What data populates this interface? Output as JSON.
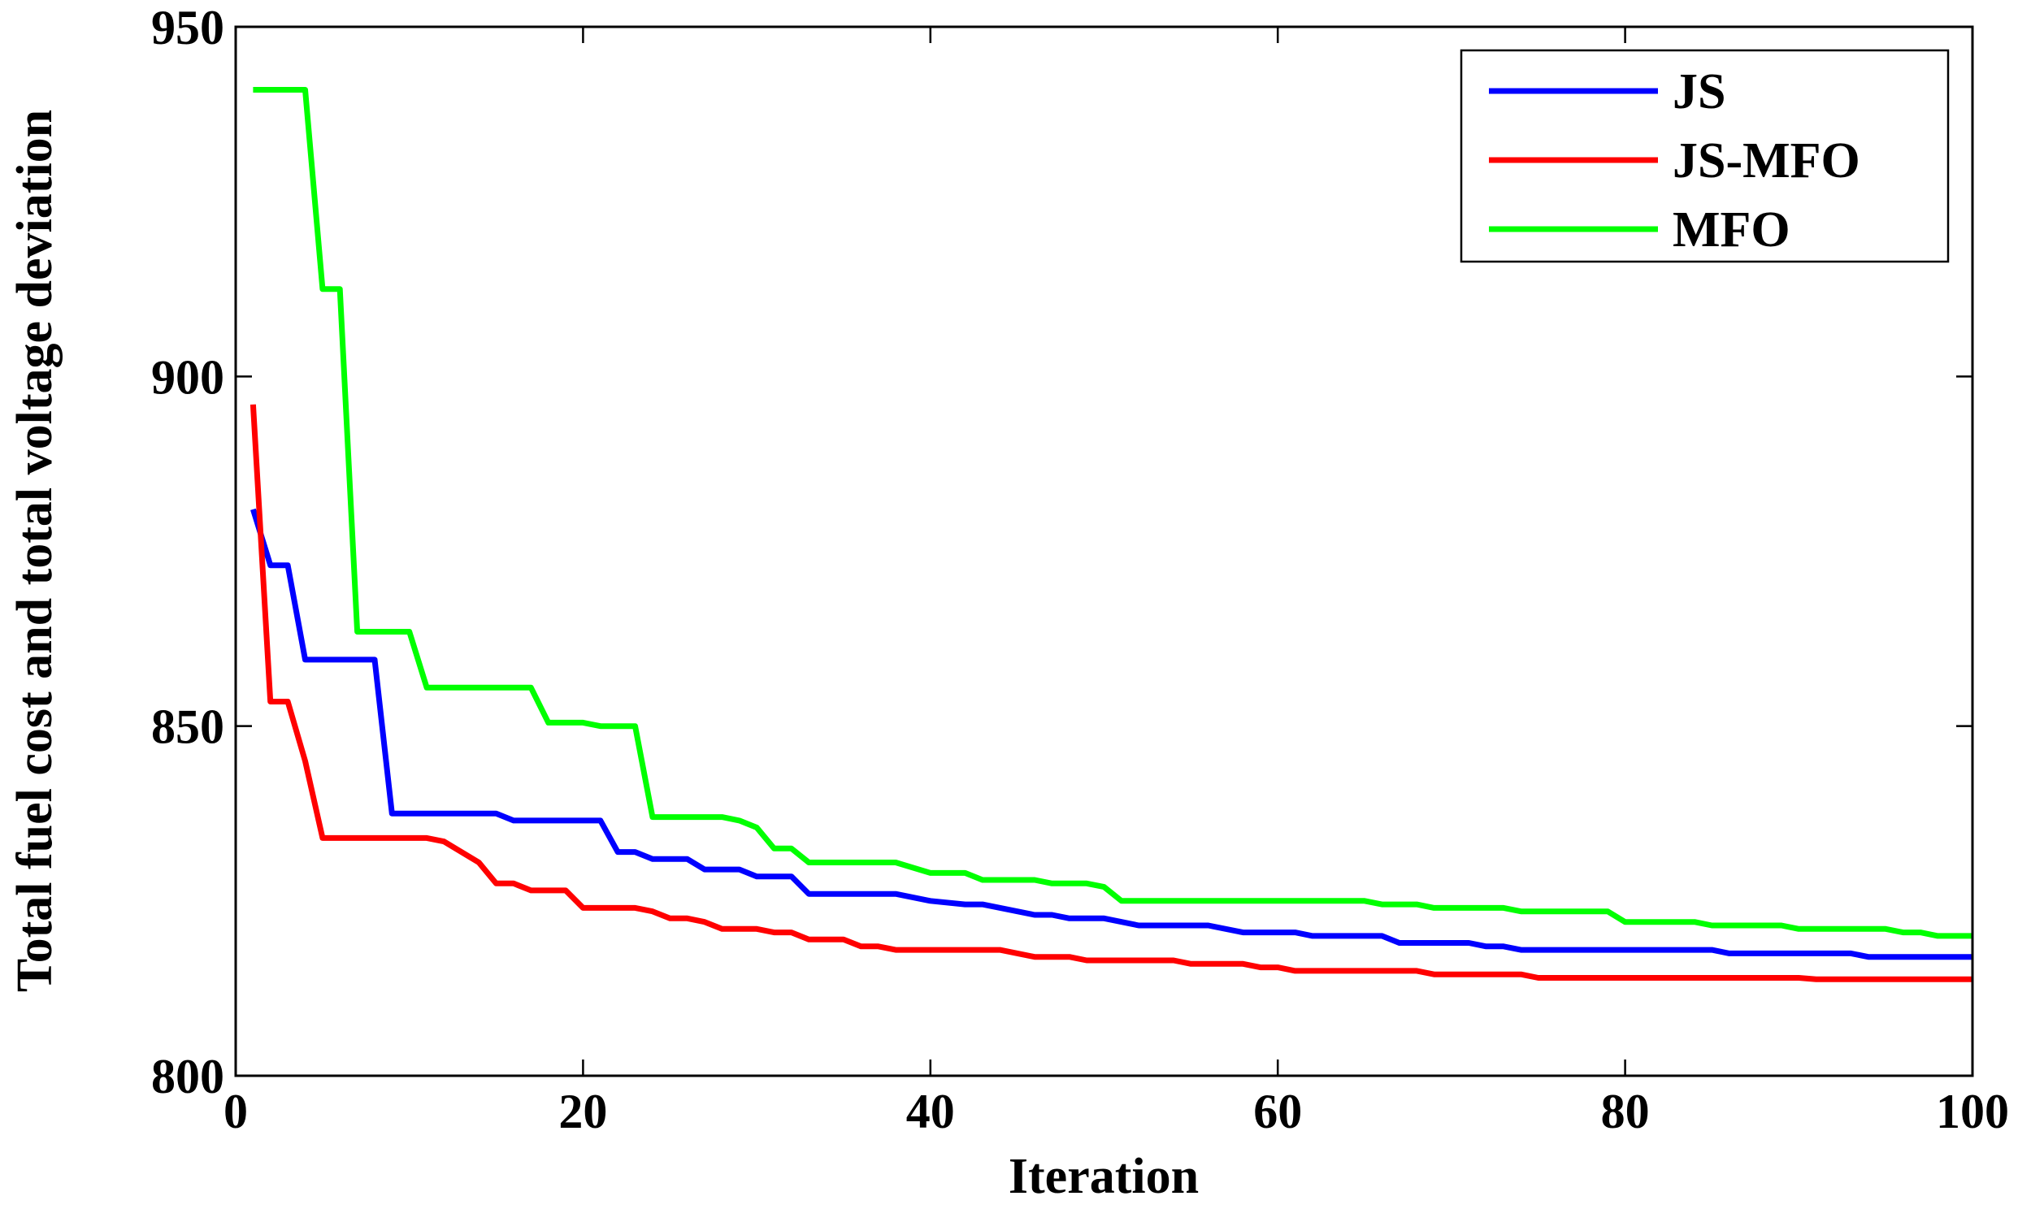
{
  "chart_data": {
    "type": "line",
    "title": "",
    "xlabel": "Iteration",
    "ylabel": "Total fuel cost and total voltage deviation",
    "xlim": [
      0,
      100
    ],
    "ylim": [
      800,
      950
    ],
    "xticks": [
      0,
      20,
      40,
      60,
      80,
      100
    ],
    "xtick_labels": [
      "0",
      "20",
      "40",
      "60",
      "80",
      "100"
    ],
    "yticks": [
      800,
      850,
      900,
      950
    ],
    "ytick_labels": [
      "800",
      "850",
      "900",
      "950"
    ],
    "grid": false,
    "legend_position": "top-right",
    "series": [
      {
        "name": "JS",
        "color": "#0000ff",
        "points": [
          [
            1,
            881
          ],
          [
            2,
            873
          ],
          [
            3,
            873
          ],
          [
            4,
            859.5
          ],
          [
            5,
            859.5
          ],
          [
            6,
            859.5
          ],
          [
            7,
            859.5
          ],
          [
            8,
            859.5
          ],
          [
            9,
            837.5
          ],
          [
            10,
            837.5
          ],
          [
            15,
            837.5
          ],
          [
            16,
            836.5
          ],
          [
            20,
            836.5
          ],
          [
            21,
            836.5
          ],
          [
            22,
            832
          ],
          [
            23,
            832
          ],
          [
            24,
            831
          ],
          [
            26,
            831
          ],
          [
            27,
            829.5
          ],
          [
            29,
            829.5
          ],
          [
            30,
            828.5
          ],
          [
            32,
            828.5
          ],
          [
            33,
            826
          ],
          [
            38,
            826
          ],
          [
            40,
            825
          ],
          [
            42,
            824.5
          ],
          [
            43,
            824.5
          ],
          [
            46,
            823
          ],
          [
            47,
            823
          ],
          [
            48,
            822.5
          ],
          [
            50,
            822.5
          ],
          [
            52,
            821.5
          ],
          [
            56,
            821.5
          ],
          [
            58,
            820.5
          ],
          [
            61,
            820.5
          ],
          [
            62,
            820
          ],
          [
            66,
            820
          ],
          [
            67,
            819
          ],
          [
            71,
            819
          ],
          [
            72,
            818.5
          ],
          [
            73,
            818.5
          ],
          [
            74,
            818
          ],
          [
            85,
            818
          ],
          [
            86,
            817.5
          ],
          [
            93,
            817.5
          ],
          [
            94,
            817
          ],
          [
            100,
            817
          ]
        ]
      },
      {
        "name": "JS-MFO",
        "color": "#ff0000",
        "points": [
          [
            1,
            896
          ],
          [
            2,
            853.5
          ],
          [
            3,
            853.5
          ],
          [
            4,
            845
          ],
          [
            5,
            834
          ],
          [
            11,
            834
          ],
          [
            12,
            833.5
          ],
          [
            13,
            832
          ],
          [
            14,
            830.5
          ],
          [
            15,
            827.5
          ],
          [
            16,
            827.5
          ],
          [
            17,
            826.5
          ],
          [
            19,
            826.5
          ],
          [
            20,
            824
          ],
          [
            23,
            824
          ],
          [
            24,
            823.5
          ],
          [
            25,
            822.5
          ],
          [
            26,
            822.5
          ],
          [
            27,
            822
          ],
          [
            28,
            821
          ],
          [
            30,
            821
          ],
          [
            31,
            820.5
          ],
          [
            32,
            820.5
          ],
          [
            33,
            819.5
          ],
          [
            35,
            819.5
          ],
          [
            36,
            818.5
          ],
          [
            37,
            818.5
          ],
          [
            38,
            818
          ],
          [
            44,
            818
          ],
          [
            46,
            817
          ],
          [
            48,
            817
          ],
          [
            49,
            816.5
          ],
          [
            54,
            816.5
          ],
          [
            55,
            816
          ],
          [
            58,
            816
          ],
          [
            59,
            815.5
          ],
          [
            60,
            815.5
          ],
          [
            61,
            815
          ],
          [
            68,
            815
          ],
          [
            69,
            814.5
          ],
          [
            74,
            814.5
          ],
          [
            75,
            814
          ],
          [
            90,
            814
          ],
          [
            91,
            813.8
          ],
          [
            100,
            813.8
          ]
        ]
      },
      {
        "name": "MFO",
        "color": "#00ff00",
        "points": [
          [
            1,
            941
          ],
          [
            4,
            941
          ],
          [
            5,
            912.5
          ],
          [
            6,
            912.5
          ],
          [
            7,
            863.5
          ],
          [
            10,
            863.5
          ],
          [
            11,
            855.5
          ],
          [
            17,
            855.5
          ],
          [
            18,
            850.5
          ],
          [
            20,
            850.5
          ],
          [
            21,
            850
          ],
          [
            23,
            850
          ],
          [
            24,
            837
          ],
          [
            28,
            837
          ],
          [
            29,
            836.5
          ],
          [
            30,
            835.5
          ],
          [
            31,
            832.5
          ],
          [
            32,
            832.5
          ],
          [
            33,
            830.5
          ],
          [
            38,
            830.5
          ],
          [
            40,
            829
          ],
          [
            42,
            829
          ],
          [
            43,
            828
          ],
          [
            46,
            828
          ],
          [
            47,
            827.5
          ],
          [
            49,
            827.5
          ],
          [
            50,
            827
          ],
          [
            51,
            825
          ],
          [
            65,
            825
          ],
          [
            66,
            824.5
          ],
          [
            68,
            824.5
          ],
          [
            69,
            824
          ],
          [
            73,
            824
          ],
          [
            74,
            823.5
          ],
          [
            79,
            823.5
          ],
          [
            80,
            822
          ],
          [
            84,
            822
          ],
          [
            85,
            821.5
          ],
          [
            89,
            821.5
          ],
          [
            90,
            821
          ],
          [
            95,
            821
          ],
          [
            96,
            820.5
          ],
          [
            97,
            820.5
          ],
          [
            98,
            820
          ],
          [
            100,
            820
          ]
        ]
      }
    ]
  }
}
